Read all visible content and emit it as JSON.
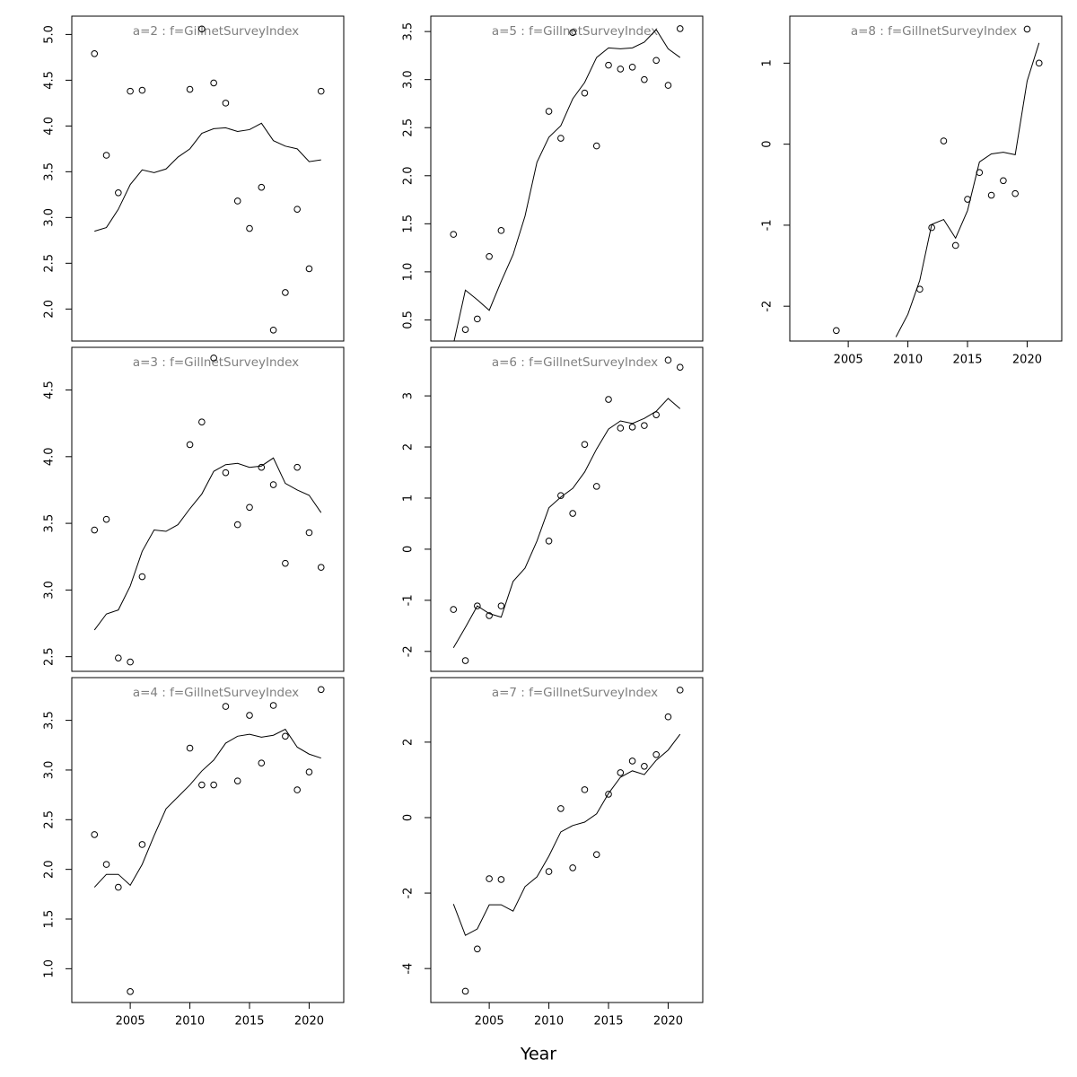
{
  "xlabel": "Year",
  "chart_data": [
    {
      "type": "scatter",
      "title": "a=2  :  f=GillnetSurveyIndex",
      "x": [
        2002,
        2003,
        2004,
        2005,
        2006,
        2007,
        2008,
        2009,
        2010,
        2011,
        2012,
        2013,
        2014,
        2015,
        2016,
        2017,
        2018,
        2019,
        2020,
        2021
      ],
      "xlim": [
        2000.1,
        2022.9
      ],
      "ylim": [
        1.65,
        5.2
      ],
      "yticks": [
        {
          "value": 2,
          "label": "2.0"
        },
        2.5,
        {
          "value": 3,
          "label": "3.0"
        },
        3.5,
        {
          "value": 4,
          "label": "4.0"
        },
        4.5,
        {
          "value": 5,
          "label": "5.0"
        }
      ],
      "series": [
        {
          "style": "points",
          "color": "#000000",
          "values": [
            4.79,
            3.68,
            3.27,
            4.38,
            4.39,
            null,
            null,
            null,
            4.4,
            5.06,
            4.47,
            4.25,
            3.18,
            2.88,
            3.33,
            1.77,
            2.18,
            3.09,
            2.44,
            4.38
          ]
        },
        {
          "style": "line",
          "color": "#000000",
          "values": [
            2.85,
            2.89,
            3.09,
            3.36,
            3.52,
            3.49,
            3.53,
            3.66,
            3.75,
            3.92,
            3.97,
            3.98,
            3.94,
            3.96,
            4.03,
            3.84,
            3.78,
            3.75,
            3.61,
            3.63
          ]
        }
      ]
    },
    {
      "type": "scatter",
      "title": "a=3  :  f=GillnetSurveyIndex",
      "x": [
        2002,
        2003,
        2004,
        2005,
        2006,
        2007,
        2008,
        2009,
        2010,
        2011,
        2012,
        2013,
        2014,
        2015,
        2016,
        2017,
        2018,
        2019,
        2020,
        2021
      ],
      "xlim": [
        2000.1,
        2022.9
      ],
      "ylim": [
        2.39,
        4.82
      ],
      "yticks": [
        2.5,
        {
          "value": 3,
          "label": "3.0"
        },
        3.5,
        {
          "value": 4,
          "label": "4.0"
        },
        4.5
      ],
      "series": [
        {
          "style": "points",
          "color": "#000000",
          "values": [
            3.45,
            3.53,
            2.49,
            2.46,
            3.1,
            null,
            null,
            null,
            4.09,
            4.26,
            4.74,
            3.88,
            3.49,
            3.62,
            3.92,
            3.79,
            3.2,
            3.92,
            3.43,
            3.17
          ]
        },
        {
          "style": "line",
          "color": "#000000",
          "values": [
            2.7,
            2.82,
            2.85,
            3.03,
            3.29,
            3.45,
            3.44,
            3.49,
            3.61,
            3.72,
            3.89,
            3.94,
            3.95,
            3.92,
            3.93,
            3.99,
            3.8,
            3.75,
            3.71,
            3.58
          ]
        }
      ]
    },
    {
      "type": "scatter",
      "title": "a=4  :  f=GillnetSurveyIndex",
      "x": [
        2002,
        2003,
        2004,
        2005,
        2006,
        2007,
        2008,
        2009,
        2010,
        2011,
        2012,
        2013,
        2014,
        2015,
        2016,
        2017,
        2018,
        2019,
        2020,
        2021
      ],
      "xlim": [
        2000.1,
        2022.9
      ],
      "ylim": [
        0.66,
        3.93
      ],
      "xticks": [
        2005,
        2010,
        2015,
        2020
      ],
      "yticks": [
        {
          "value": 1,
          "label": "1.0"
        },
        1.5,
        {
          "value": 2,
          "label": "2.0"
        },
        2.5,
        {
          "value": 3,
          "label": "3.0"
        },
        3.5
      ],
      "series": [
        {
          "style": "points",
          "color": "#000000",
          "values": [
            2.35,
            2.05,
            1.82,
            0.77,
            2.25,
            null,
            null,
            null,
            3.22,
            2.85,
            2.85,
            3.64,
            2.89,
            3.55,
            3.07,
            3.65,
            3.34,
            2.8,
            2.98,
            3.81
          ]
        },
        {
          "style": "line",
          "color": "#000000",
          "values": [
            1.82,
            1.95,
            1.95,
            1.84,
            2.05,
            2.34,
            2.61,
            2.73,
            2.85,
            2.99,
            3.1,
            3.27,
            3.34,
            3.36,
            3.33,
            3.35,
            3.41,
            3.23,
            3.16,
            3.12
          ]
        }
      ]
    },
    {
      "type": "scatter",
      "title": "a=5  :  f=GillnetSurveyIndex",
      "x": [
        2002,
        2003,
        2004,
        2005,
        2006,
        2007,
        2008,
        2009,
        2010,
        2011,
        2012,
        2013,
        2014,
        2015,
        2016,
        2017,
        2018,
        2019,
        2020,
        2021
      ],
      "xlim": [
        2000.1,
        2022.9
      ],
      "ylim": [
        0.28,
        3.66
      ],
      "yticks": [
        0.5,
        {
          "value": 1,
          "label": "1.0"
        },
        1.5,
        {
          "value": 2,
          "label": "2.0"
        },
        2.5,
        {
          "value": 3,
          "label": "3.0"
        },
        3.5
      ],
      "series": [
        {
          "style": "points",
          "color": "#000000",
          "values": [
            1.39,
            0.4,
            0.51,
            1.16,
            1.43,
            null,
            null,
            null,
            2.67,
            2.39,
            3.49,
            2.86,
            2.31,
            3.15,
            3.11,
            3.13,
            3.0,
            3.2,
            2.94,
            3.53
          ]
        },
        {
          "style": "line",
          "color": "#000000",
          "values": [
            0.25,
            0.81,
            0.71,
            0.6,
            0.9,
            1.18,
            1.58,
            2.14,
            2.4,
            2.52,
            2.8,
            2.97,
            3.23,
            3.33,
            3.32,
            3.33,
            3.39,
            3.52,
            3.32,
            3.23
          ]
        }
      ]
    },
    {
      "type": "scatter",
      "title": "a=6  :  f=GillnetSurveyIndex",
      "x": [
        2002,
        2003,
        2004,
        2005,
        2006,
        2007,
        2008,
        2009,
        2010,
        2011,
        2012,
        2013,
        2014,
        2015,
        2016,
        2017,
        2018,
        2019,
        2020,
        2021
      ],
      "xlim": [
        2000.1,
        2022.9
      ],
      "ylim": [
        -2.39,
        3.95
      ],
      "yticks": [
        -2,
        -1,
        0,
        1,
        2,
        3
      ],
      "series": [
        {
          "style": "points",
          "color": "#000000",
          "values": [
            -1.18,
            -2.18,
            -1.11,
            -1.3,
            -1.11,
            null,
            null,
            null,
            0.16,
            1.05,
            0.7,
            2.05,
            1.23,
            2.93,
            2.37,
            2.39,
            2.42,
            2.63,
            3.7,
            3.56
          ]
        },
        {
          "style": "line",
          "color": "#000000",
          "values": [
            -1.93,
            -1.53,
            -1.11,
            -1.26,
            -1.33,
            -0.63,
            -0.37,
            0.16,
            0.81,
            1.02,
            1.19,
            1.51,
            1.96,
            2.35,
            2.51,
            2.46,
            2.56,
            2.7,
            2.95,
            2.75
          ]
        }
      ]
    },
    {
      "type": "scatter",
      "title": "a=7  :  f=GillnetSurveyIndex",
      "x": [
        2002,
        2003,
        2004,
        2005,
        2006,
        2007,
        2008,
        2009,
        2010,
        2011,
        2012,
        2013,
        2014,
        2015,
        2016,
        2017,
        2018,
        2019,
        2020,
        2021
      ],
      "xlim": [
        2000.1,
        2022.9
      ],
      "ylim": [
        -4.9,
        3.71
      ],
      "xticks": [
        2005,
        2010,
        2015,
        2020
      ],
      "yticks": [
        -4,
        -2,
        0,
        2
      ],
      "series": [
        {
          "style": "points",
          "color": "#000000",
          "values": [
            null,
            -4.6,
            -3.48,
            -1.62,
            -1.64,
            null,
            null,
            null,
            -1.43,
            0.24,
            -1.33,
            0.74,
            -0.98,
            0.62,
            1.19,
            1.5,
            1.36,
            1.67,
            2.67,
            3.38
          ]
        },
        {
          "style": "line",
          "color": "#000000",
          "values": [
            -2.29,
            -3.12,
            -2.95,
            -2.31,
            -2.31,
            -2.48,
            -1.83,
            -1.57,
            -1.02,
            -0.38,
            -0.21,
            -0.12,
            0.1,
            0.64,
            1.07,
            1.24,
            1.14,
            1.52,
            1.79,
            2.21
          ]
        }
      ]
    },
    {
      "type": "scatter",
      "title": "a=8  :  f=GillnetSurveyIndex",
      "x": [
        2002,
        2003,
        2004,
        2005,
        2006,
        2007,
        2008,
        2009,
        2010,
        2011,
        2012,
        2013,
        2014,
        2015,
        2016,
        2017,
        2018,
        2019,
        2020,
        2021
      ],
      "xlim": [
        2000.1,
        2022.9
      ],
      "ylim": [
        -2.43,
        1.58
      ],
      "xticks": [
        2005,
        2010,
        2015,
        2020
      ],
      "yticks": [
        -2,
        -1,
        0,
        1
      ],
      "series": [
        {
          "style": "points",
          "color": "#000000",
          "values": [
            null,
            null,
            -2.3,
            null,
            null,
            null,
            null,
            null,
            null,
            -1.79,
            -1.03,
            0.04,
            -1.25,
            -0.68,
            -0.35,
            -0.63,
            -0.45,
            -0.61,
            1.42,
            1.0
          ]
        },
        {
          "style": "line",
          "color": "#000000",
          "values": [
            null,
            null,
            null,
            null,
            null,
            null,
            null,
            -2.38,
            -2.1,
            -1.68,
            -0.99,
            -0.93,
            -1.16,
            -0.82,
            -0.22,
            -0.12,
            -0.1,
            -0.13,
            0.78,
            1.25
          ]
        }
      ]
    }
  ]
}
